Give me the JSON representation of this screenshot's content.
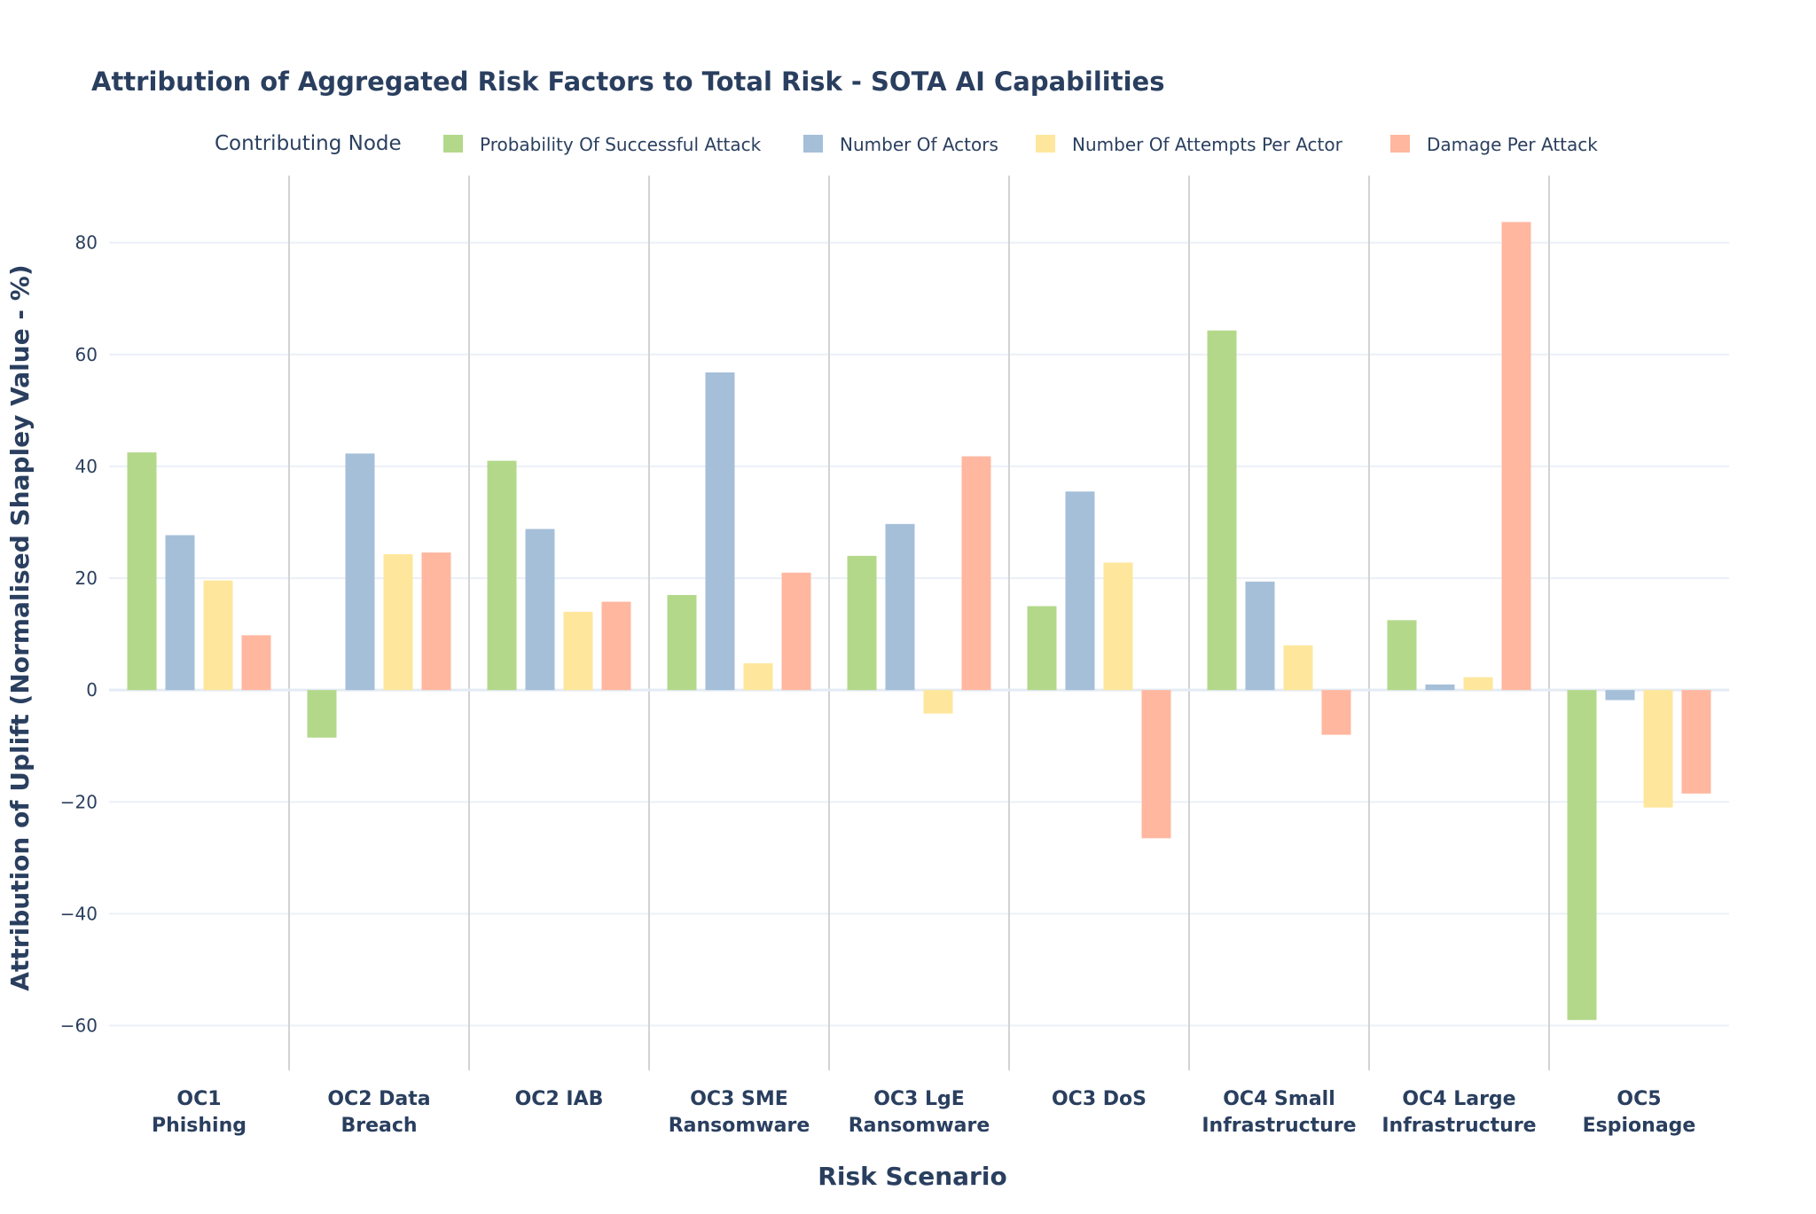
{
  "chart_data": {
    "type": "bar",
    "title": "Attribution of Aggregated Risk Factors to Total Risk - SOTA AI Capabilities",
    "legend_title": "Contributing Node",
    "xlabel": "Risk Scenario",
    "ylabel": "Attribution of Uplift (Normalised Shapley Value - %)",
    "ylim": [
      -68,
      92
    ],
    "yticks": [
      -60,
      -40,
      -20,
      0,
      20,
      40,
      60,
      80
    ],
    "ytick_labels": [
      "−60",
      "−40",
      "−20",
      "0",
      "20",
      "40",
      "60",
      "80"
    ],
    "categories": [
      [
        "OC1",
        "Phishing"
      ],
      [
        "OC2 Data",
        "Breach"
      ],
      [
        "OC2 IAB"
      ],
      [
        "OC3 SME",
        "Ransomware"
      ],
      [
        "OC3 LgE",
        "Ransomware"
      ],
      [
        "OC3 DoS"
      ],
      [
        "OC4 Small",
        "Infrastructure"
      ],
      [
        "OC4 Large",
        "Infrastructure"
      ],
      [
        "OC5",
        "Espionage"
      ]
    ],
    "series": [
      {
        "name": "Probability Of Successful Attack",
        "color": "#b3d88a",
        "values": [
          42.5,
          -8.5,
          41.0,
          17.0,
          24.0,
          15.0,
          64.3,
          12.5,
          -59.0
        ]
      },
      {
        "name": "Number Of Actors",
        "color": "#a5bfd9",
        "values": [
          27.7,
          42.3,
          28.8,
          56.8,
          29.7,
          35.5,
          19.4,
          1.0,
          -1.8
        ]
      },
      {
        "name": "Number Of Attempts Per Actor",
        "color": "#fee79c",
        "values": [
          19.6,
          24.3,
          14.0,
          4.8,
          -4.2,
          22.8,
          8.0,
          2.3,
          -21.0
        ]
      },
      {
        "name": "Damage Per Attack",
        "color": "#ffb7a0",
        "values": [
          9.8,
          24.6,
          15.8,
          21.0,
          41.8,
          -26.5,
          -8.0,
          83.7,
          -18.5
        ]
      }
    ]
  }
}
